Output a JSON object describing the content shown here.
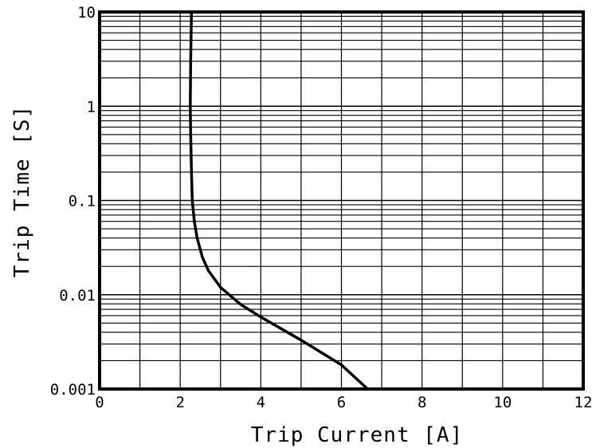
{
  "chart_data": {
    "type": "line",
    "xlabel": "Trip Current [A]",
    "ylabel": "Trip Time [S]",
    "xlim": [
      0,
      12
    ],
    "ylim": [
      0.001,
      10
    ],
    "yscale": "log",
    "grid": true,
    "x_ticks": [
      {
        "value": 0,
        "label": "0"
      },
      {
        "value": 2,
        "label": "2"
      },
      {
        "value": 4,
        "label": "4"
      },
      {
        "value": 6,
        "label": "6"
      },
      {
        "value": 8,
        "label": "8"
      },
      {
        "value": 10,
        "label": "10"
      },
      {
        "value": 12,
        "label": "12"
      }
    ],
    "y_ticks": [
      {
        "value": 0.001,
        "label": "0.001"
      },
      {
        "value": 0.01,
        "label": "0.01"
      },
      {
        "value": 0.1,
        "label": "0.1"
      },
      {
        "value": 1,
        "label": "1"
      },
      {
        "value": 10,
        "label": "10"
      }
    ],
    "series": [
      {
        "color": "#000000",
        "points": [
          [
            2.28,
            10
          ],
          [
            2.26,
            3
          ],
          [
            2.25,
            1
          ],
          [
            2.26,
            0.5
          ],
          [
            2.28,
            0.2
          ],
          [
            2.3,
            0.1
          ],
          [
            2.35,
            0.06
          ],
          [
            2.42,
            0.04
          ],
          [
            2.55,
            0.025
          ],
          [
            2.7,
            0.018
          ],
          [
            3.0,
            0.012
          ],
          [
            3.5,
            0.0079
          ],
          [
            4.0,
            0.0058
          ],
          [
            5.0,
            0.0033
          ],
          [
            6.0,
            0.0018
          ],
          [
            6.65,
            0.001
          ]
        ]
      }
    ]
  }
}
